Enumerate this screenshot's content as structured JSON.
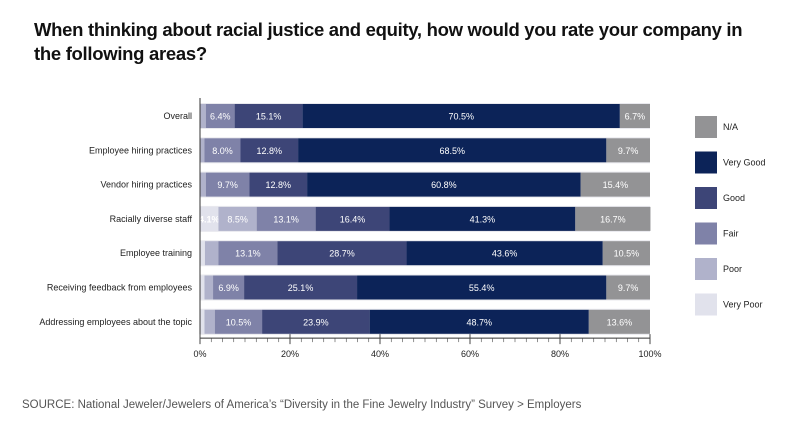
{
  "title": "When thinking about racial justice and equity, how would you rate your company in the following areas?",
  "source": "SOURCE: National Jeweler/Jewelers of America’s “Diversity in the Fine Jewelry Industry” Survey > Employers",
  "chart_data": {
    "type": "bar",
    "orientation": "horizontal",
    "stacked": true,
    "title": "When thinking about racial justice and equity, how would you rate your company in the following areas?",
    "xlabel": "",
    "ylabel": "",
    "xlim": [
      0,
      100
    ],
    "x_ticks": [
      "0%",
      "20%",
      "40%",
      "60%",
      "80%",
      "100%"
    ],
    "legend_position": "right",
    "categories": [
      "Overall",
      "Employee hiring practices",
      "Vendor hiring practices",
      "Racially diverse staff",
      "Employee training",
      "Receiving feedback from employees",
      "Addressing employees about the topic"
    ],
    "series": [
      {
        "name": "Very Poor",
        "color": "#e1e2ec",
        "label_color": "#0f2a5c",
        "values": [
          0.0,
          0.0,
          0.0,
          4.1,
          1.1,
          1.0,
          1.0
        ],
        "labels": [
          "",
          "",
          "",
          "4.1%",
          "",
          "",
          ""
        ]
      },
      {
        "name": "Poor",
        "color": "#b0b2cb",
        "label_color": "#ffffff",
        "values": [
          1.3,
          1.0,
          1.3,
          8.5,
          3.0,
          1.9,
          2.3
        ],
        "labels": [
          "",
          "",
          "",
          "8.5%",
          "",
          "",
          ""
        ]
      },
      {
        "name": "Fair",
        "color": "#7f82a8",
        "label_color": "#ffffff",
        "values": [
          6.4,
          8.0,
          9.7,
          13.1,
          13.1,
          6.9,
          10.5
        ],
        "labels": [
          "6.4%",
          "8.0%",
          "9.7%",
          "13.1%",
          "13.1%",
          "6.9%",
          "10.5%"
        ]
      },
      {
        "name": "Good",
        "color": "#3d4577",
        "label_color": "#ffffff",
        "values": [
          15.1,
          12.8,
          12.8,
          16.4,
          28.7,
          25.1,
          23.9
        ],
        "labels": [
          "15.1%",
          "12.8%",
          "12.8%",
          "16.4%",
          "28.7%",
          "25.1%",
          "23.9%"
        ]
      },
      {
        "name": "Very Good",
        "color": "#0c2358",
        "label_color": "#ffffff",
        "values": [
          70.5,
          68.5,
          60.8,
          41.3,
          43.6,
          55.4,
          48.7
        ],
        "labels": [
          "70.5%",
          "68.5%",
          "60.8%",
          "41.3%",
          "43.6%",
          "55.4%",
          "48.7%"
        ]
      },
      {
        "name": "N/A",
        "color": "#939395",
        "label_color": "#ffffff",
        "values": [
          6.7,
          9.7,
          15.4,
          16.7,
          10.5,
          9.7,
          13.6
        ],
        "labels": [
          "6.7%",
          "9.7%",
          "15.4%",
          "16.7%",
          "10.5%",
          "9.7%",
          "13.6%"
        ]
      }
    ],
    "legend_order": [
      "N/A",
      "Very Good",
      "Good",
      "Fair",
      "Poor",
      "Very Poor"
    ]
  }
}
